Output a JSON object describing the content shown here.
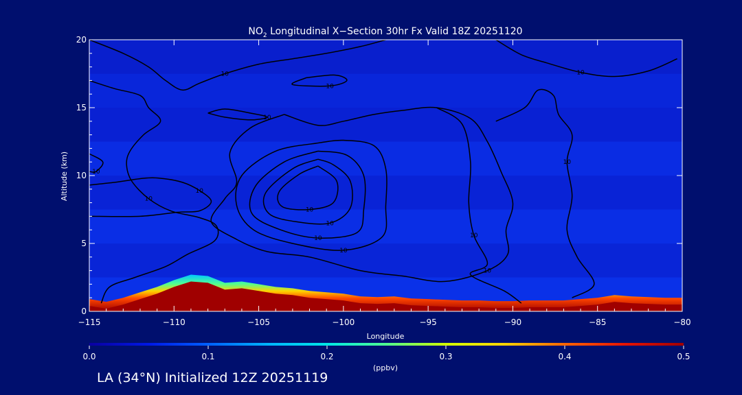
{
  "chart_data": {
    "type": "heatmap",
    "title": {
      "species_main": "NO",
      "species_sub": "2",
      "rest": " Longitudinal X−Section 30hr  Fx Valid 18Z 20251120"
    },
    "xlabel": "Longitude",
    "ylabel": "Altitude (km)",
    "xlim": [
      -115,
      -80
    ],
    "ylim": [
      0,
      20
    ],
    "x_ticks": [
      -115,
      -110,
      -105,
      -100,
      -95,
      -90,
      -85,
      -80
    ],
    "x_tick_labels": [
      "−115",
      "−110",
      "−105",
      "−100",
      "−95",
      "−90",
      "−85",
      "−80"
    ],
    "y_ticks": [
      0,
      5,
      10,
      15,
      20
    ],
    "y_tick_labels": [
      "0",
      "5",
      "10",
      "15",
      "20"
    ],
    "colorbar": {
      "min": 0.0,
      "max": 0.5,
      "ticks": [
        0.0,
        0.1,
        0.2,
        0.3,
        0.4,
        0.5
      ],
      "tick_labels": [
        "0.0",
        "0.1",
        "0.2",
        "0.3",
        "0.4",
        "0.5"
      ],
      "unit_label": "(ppbv)",
      "colors": [
        "#0a00a0",
        "#0018e6",
        "#0060ff",
        "#00b4ff",
        "#00e6e6",
        "#50ff90",
        "#d2ff00",
        "#ffd200",
        "#ff6400",
        "#e61400",
        "#a00000"
      ]
    },
    "terrain": {
      "lon": [
        -115,
        -114,
        -113,
        -112,
        -111,
        -110,
        -109,
        -108,
        -107,
        -106,
        -105,
        -104,
        -103,
        -102,
        -101,
        -100,
        -99,
        -98,
        -97,
        -96,
        -95,
        -94,
        -93,
        -92,
        -91,
        -90,
        -89,
        -88,
        -87,
        -86,
        -85,
        -84,
        -83,
        -82,
        -81,
        -80
      ],
      "alt_km": [
        0.4,
        0.2,
        0.5,
        0.9,
        1.3,
        1.8,
        2.2,
        2.1,
        1.6,
        1.7,
        1.5,
        1.3,
        1.2,
        1.0,
        0.9,
        0.8,
        0.6,
        0.55,
        0.6,
        0.45,
        0.4,
        0.35,
        0.3,
        0.3,
        0.25,
        0.25,
        0.3,
        0.3,
        0.3,
        0.4,
        0.5,
        0.7,
        0.6,
        0.55,
        0.5,
        0.5
      ]
    },
    "surface_layer_thickness_km": 0.5,
    "background_no2_ppbv": 0.03,
    "contour_label": "10",
    "contours": [
      {
        "name": "top-left",
        "points": [
          [
            -115,
            20
          ],
          [
            -113,
            19
          ],
          [
            -111.5,
            18
          ],
          [
            -110.5,
            17
          ],
          [
            -109.5,
            16.3
          ],
          [
            -108.5,
            16.8
          ],
          [
            -107,
            17.5
          ],
          [
            -105,
            18.2
          ],
          [
            -103,
            18.6
          ],
          [
            -101,
            19
          ],
          [
            -99,
            19.5
          ],
          [
            -97.5,
            20
          ]
        ]
      },
      {
        "name": "top-right",
        "points": [
          [
            -91,
            20
          ],
          [
            -89.5,
            18.9
          ],
          [
            -88,
            18.3
          ],
          [
            -86,
            17.6
          ],
          [
            -84,
            17.3
          ],
          [
            -82,
            17.7
          ],
          [
            -80.3,
            18.6
          ]
        ]
      },
      {
        "name": "small-oval",
        "points": [
          [
            -102.2,
            17.2
          ],
          [
            -100.5,
            17.4
          ],
          [
            -99.8,
            17
          ],
          [
            -100.8,
            16.6
          ],
          [
            -103,
            16.7
          ],
          [
            -102.2,
            17.2
          ]
        ]
      },
      {
        "name": "left-arc",
        "points": [
          [
            -115,
            17
          ],
          [
            -113.5,
            16.4
          ],
          [
            -112,
            15.9
          ],
          [
            -111.5,
            15
          ],
          [
            -110.8,
            14
          ],
          [
            -111.8,
            13
          ],
          [
            -112.6,
            11.8
          ],
          [
            -112.8,
            10.8
          ],
          [
            -112.5,
            9.6
          ],
          [
            -111.5,
            8.3
          ],
          [
            -110.2,
            7.4
          ],
          [
            -108.5,
            6.9
          ],
          [
            -107.5,
            6.3
          ],
          [
            -107.6,
            5.2
          ],
          [
            -109.2,
            4.2
          ],
          [
            -110.5,
            3.3
          ],
          [
            -112.3,
            2.5
          ],
          [
            -113.8,
            1.8
          ],
          [
            -114.3,
            0.6
          ]
        ]
      },
      {
        "name": "inner-left",
        "points": [
          [
            -115,
            11.6
          ],
          [
            -114.2,
            11
          ],
          [
            -114.6,
            10.3
          ],
          [
            -115,
            10.3
          ]
        ]
      },
      {
        "name": "mid-left",
        "points": [
          [
            -115,
            9.3
          ],
          [
            -113.5,
            9.5
          ],
          [
            -111.8,
            9.8
          ],
          [
            -110.8,
            9.8
          ],
          [
            -109.5,
            9.5
          ],
          [
            -108.5,
            8.9
          ],
          [
            -107.8,
            8.1
          ],
          [
            -108.5,
            7.4
          ],
          [
            -109.8,
            7.3
          ],
          [
            -112,
            7
          ],
          [
            -115,
            7
          ]
        ]
      },
      {
        "name": "band",
        "points": [
          [
            -108,
            14.6
          ],
          [
            -107,
            14.9
          ],
          [
            -105.5,
            14.6
          ],
          [
            -104.5,
            14.3
          ],
          [
            -105.5,
            14.1
          ],
          [
            -107,
            14.3
          ],
          [
            -108,
            14.6
          ]
        ]
      },
      {
        "name": "outer",
        "points": [
          [
            -103.5,
            14.5
          ],
          [
            -105.5,
            13.5
          ],
          [
            -106.7,
            11.7
          ],
          [
            -106.3,
            9.5
          ],
          [
            -107,
            8.3
          ],
          [
            -107.8,
            6.6
          ],
          [
            -106.3,
            5.3
          ],
          [
            -104.5,
            4.4
          ],
          [
            -102,
            4
          ],
          [
            -99,
            3
          ],
          [
            -96.5,
            2.6
          ],
          [
            -94,
            2.2
          ],
          [
            -91.5,
            3
          ],
          [
            -90.3,
            4.2
          ],
          [
            -90.4,
            6
          ],
          [
            -90,
            8
          ],
          [
            -90.7,
            10.3
          ],
          [
            -91.5,
            12.5
          ],
          [
            -92.5,
            14.2
          ],
          [
            -94.5,
            15
          ],
          [
            -96.5,
            14.8
          ],
          [
            -98.2,
            14.5
          ],
          [
            -100,
            14
          ],
          [
            -101.5,
            13.7
          ],
          [
            -103.5,
            14.5
          ]
        ]
      },
      {
        "name": "ring-1",
        "points": [
          [
            -101.5,
            12.4
          ],
          [
            -104,
            11.8
          ],
          [
            -106,
            10
          ],
          [
            -106.3,
            7.8
          ],
          [
            -105.3,
            6
          ],
          [
            -103,
            5
          ],
          [
            -100,
            4.5
          ],
          [
            -97.7,
            5.5
          ],
          [
            -97.5,
            7.8
          ],
          [
            -97.5,
            10.5
          ],
          [
            -98.2,
            12.2
          ],
          [
            -100,
            12.6
          ],
          [
            -101.5,
            12.4
          ]
        ]
      },
      {
        "name": "ring-2",
        "points": [
          [
            -101.5,
            11.8
          ],
          [
            -103.5,
            11
          ],
          [
            -105.2,
            9.2
          ],
          [
            -105.4,
            7.2
          ],
          [
            -103.7,
            6
          ],
          [
            -101.5,
            5.4
          ],
          [
            -99.2,
            5.8
          ],
          [
            -98.8,
            7.5
          ],
          [
            -98.8,
            10
          ],
          [
            -99.8,
            11.5
          ],
          [
            -101.5,
            11.8
          ]
        ]
      },
      {
        "name": "ring-3",
        "points": [
          [
            -101.5,
            11.2
          ],
          [
            -103,
            10.5
          ],
          [
            -104.6,
            8.7
          ],
          [
            -104.4,
            7.2
          ],
          [
            -102.8,
            6.6
          ],
          [
            -100.8,
            6.5
          ],
          [
            -99.6,
            7.6
          ],
          [
            -99.6,
            9.6
          ],
          [
            -100.6,
            10.8
          ],
          [
            -101.5,
            11.2
          ]
        ]
      },
      {
        "name": "ring-4",
        "points": [
          [
            -101.5,
            10.7
          ],
          [
            -102.6,
            10.1
          ],
          [
            -103.8,
            8.8
          ],
          [
            -103.6,
            7.7
          ],
          [
            -102,
            7.5
          ],
          [
            -100.6,
            8
          ],
          [
            -100.4,
            9.6
          ],
          [
            -101.5,
            10.7
          ]
        ]
      },
      {
        "name": "right-loop",
        "points": [
          [
            -91,
            14
          ],
          [
            -89.3,
            15
          ],
          [
            -88.5,
            16.3
          ],
          [
            -87.6,
            15.9
          ],
          [
            -87.3,
            14.5
          ],
          [
            -86.5,
            13
          ],
          [
            -86.8,
            11
          ],
          [
            -86.5,
            8.5
          ],
          [
            -86.8,
            6
          ],
          [
            -86.2,
            4
          ],
          [
            -85.2,
            2
          ],
          [
            -86.5,
            1
          ]
        ]
      },
      {
        "name": "lower-arc",
        "points": [
          [
            -94.5,
            15
          ],
          [
            -93,
            13.8
          ],
          [
            -92.5,
            11
          ],
          [
            -92.6,
            8
          ],
          [
            -92.3,
            5.6
          ],
          [
            -91.5,
            3.5
          ],
          [
            -92.5,
            2.7
          ],
          [
            -90.5,
            1.5
          ],
          [
            -89.5,
            0.6
          ]
        ]
      }
    ]
  },
  "footer": {
    "text": "LA (34°N) Initialized 12Z 20251119"
  }
}
